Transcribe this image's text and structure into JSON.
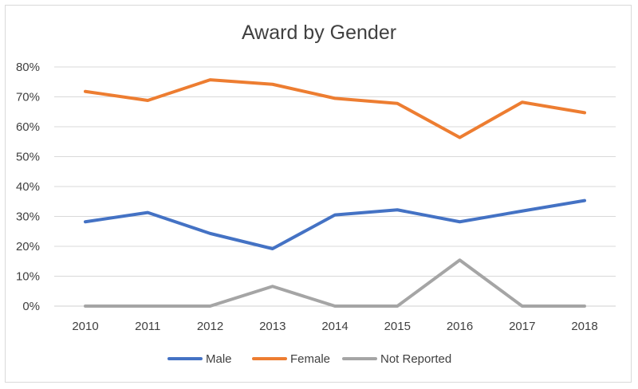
{
  "chart_data": {
    "type": "line",
    "title": "Award by Gender",
    "xlabel": "",
    "ylabel": "",
    "categories": [
      "2010",
      "2011",
      "2012",
      "2013",
      "2014",
      "2015",
      "2016",
      "2017",
      "2018"
    ],
    "ylim": [
      0,
      80
    ],
    "yticks": [
      "0%",
      "10%",
      "20%",
      "30%",
      "40%",
      "50%",
      "60%",
      "70%",
      "80%"
    ],
    "grid": true,
    "legend_position": "bottom",
    "series": [
      {
        "name": "Male",
        "color": "#4472c4",
        "values": [
          28.2,
          31.3,
          24.3,
          19.2,
          30.5,
          32.2,
          28.2,
          31.8,
          35.3
        ]
      },
      {
        "name": "Female",
        "color": "#ed7d31",
        "values": [
          71.8,
          68.8,
          75.7,
          74.2,
          69.5,
          67.8,
          56.4,
          68.2,
          64.7
        ]
      },
      {
        "name": "Not Reported",
        "color": "#a5a5a5",
        "values": [
          0,
          0,
          0,
          6.6,
          0,
          0,
          15.4,
          0,
          0
        ]
      }
    ]
  }
}
